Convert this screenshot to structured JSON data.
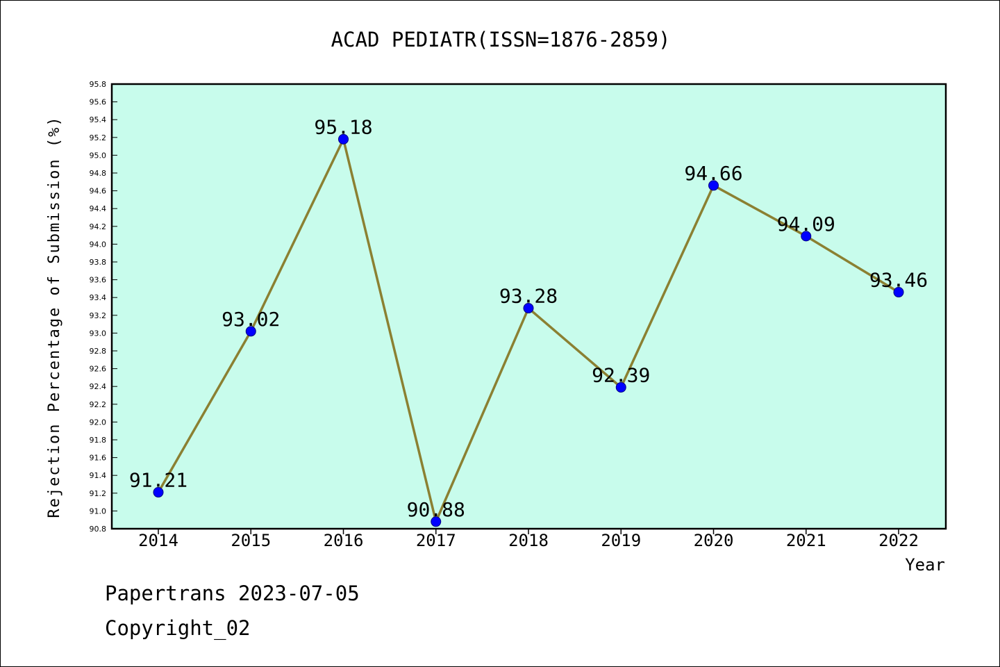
{
  "chart_data": {
    "type": "line",
    "title": "ACAD PEDIATR(ISSN=1876-2859)",
    "xlabel": "Year",
    "ylabel": "Rejection Percentage of Submission (%)",
    "categories": [
      "2014",
      "2015",
      "2016",
      "2017",
      "2018",
      "2019",
      "2020",
      "2021",
      "2022"
    ],
    "values": [
      91.21,
      93.02,
      95.18,
      90.88,
      93.28,
      92.39,
      94.66,
      94.09,
      93.46
    ],
    "data_labels": [
      "91.21",
      "93.02",
      "95.18",
      "90.88",
      "93.28",
      "92.39",
      "94.66",
      "94.09",
      "93.46"
    ],
    "ylim": [
      90.8,
      95.8
    ],
    "yticks": [
      "90.8",
      "91.0",
      "91.2",
      "91.4",
      "91.6",
      "91.8",
      "92.0",
      "92.2",
      "92.4",
      "92.6",
      "92.8",
      "93.0",
      "93.2",
      "93.4",
      "93.6",
      "93.8",
      "94.0",
      "94.2",
      "94.4",
      "94.6",
      "94.8",
      "95.0",
      "95.2",
      "95.4",
      "95.6",
      "95.8"
    ],
    "grid": false,
    "colors": {
      "plot_background": "#c8fcec",
      "line": "#8b8032",
      "marker": "#0000ff"
    }
  },
  "footer": {
    "source": "Papertrans 2023-07-05",
    "copyright": "Copyright_02"
  }
}
